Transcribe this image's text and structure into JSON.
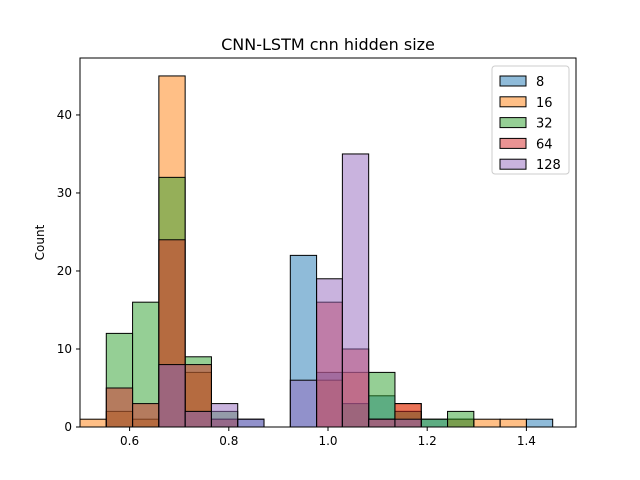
{
  "chart_data": {
    "type": "bar",
    "title": "CNN-LSTM cnn hidden size",
    "xlabel": "",
    "ylabel": "Count",
    "xlim": [
      0.5,
      1.5
    ],
    "ylim": [
      0,
      47.3
    ],
    "xticks": [
      0.6,
      0.8,
      1.0,
      1.2,
      1.4
    ],
    "xtick_labels": [
      "0.6",
      "0.8",
      "1.0",
      "1.2",
      "1.4"
    ],
    "yticks": [
      0,
      10,
      20,
      30,
      40
    ],
    "ytick_labels": [
      "0",
      "10",
      "20",
      "30",
      "40"
    ],
    "bin_edges": [
      0.5,
      0.553,
      0.606,
      0.659,
      0.712,
      0.765,
      0.818,
      0.871,
      0.924,
      0.977,
      1.029,
      1.082,
      1.135,
      1.188,
      1.241,
      1.294,
      1.347,
      1.4,
      1.453
    ],
    "legend_position": "top-right",
    "grid": false,
    "series": [
      {
        "name": "8",
        "color": "#1f77b4",
        "values": [
          0,
          0,
          0,
          8,
          2,
          1,
          1,
          0,
          22,
          7,
          3,
          4,
          2,
          1,
          1,
          0,
          0,
          1
        ]
      },
      {
        "name": "16",
        "color": "#ff7f0e",
        "values": [
          1,
          2,
          1,
          45,
          7,
          0,
          0,
          0,
          0,
          6,
          7,
          1,
          3,
          0,
          1,
          1,
          1,
          0
        ]
      },
      {
        "name": "32",
        "color": "#2ca02c",
        "values": [
          0,
          12,
          16,
          32,
          9,
          2,
          0,
          0,
          0,
          0,
          3,
          7,
          2,
          1,
          2,
          0,
          0,
          0
        ]
      },
      {
        "name": "64",
        "color": "#d62728",
        "values": [
          0,
          5,
          3,
          24,
          8,
          1,
          0,
          0,
          0,
          16,
          10,
          1,
          3,
          0,
          0,
          0,
          0,
          0
        ]
      },
      {
        "name": "128",
        "color": "#9467bd",
        "values": [
          0,
          0,
          0,
          8,
          2,
          3,
          1,
          0,
          6,
          19,
          35,
          1,
          1,
          0,
          0,
          0,
          0,
          0
        ]
      }
    ]
  }
}
